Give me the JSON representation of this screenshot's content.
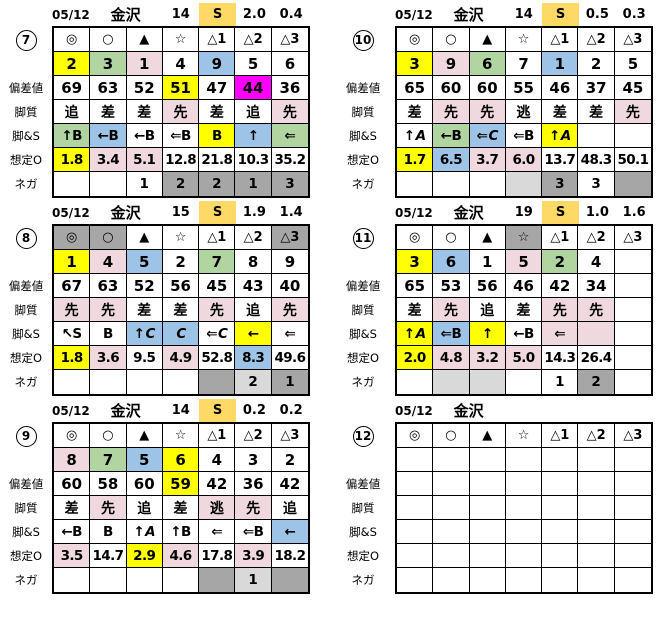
{
  "colors": {
    "yellow": "#FFFF00",
    "green": "#B1D5A0",
    "pink": "#EFD9DE",
    "blue": "#9DC3E6",
    "magenta": "#FF00FF",
    "orange": "#FFD966",
    "gray": "#A6A6A6",
    "lgray": "#D9D9D9"
  },
  "row_labels": [
    "偏差値",
    "脚質",
    "脚&S",
    "想定O",
    "ネガ"
  ],
  "tables": [
    {
      "circle": "7",
      "header": {
        "date": "05/12",
        "track": "金沢",
        "race": "14",
        "flag": "S",
        "v1": "2.0",
        "v2": "0.4"
      },
      "symbols": [
        [
          "◎",
          ""
        ],
        [
          "○",
          ""
        ],
        [
          "▲",
          ""
        ],
        [
          "☆",
          ""
        ],
        [
          "△1",
          ""
        ],
        [
          "△2",
          ""
        ],
        [
          "△3",
          ""
        ]
      ],
      "pick": [
        [
          "2",
          "yellow"
        ],
        [
          "3",
          "green"
        ],
        [
          "1",
          "pink"
        ],
        [
          "4",
          ""
        ],
        [
          "9",
          "blue"
        ],
        [
          "5",
          ""
        ],
        [
          "6",
          ""
        ]
      ],
      "dev": [
        [
          "69",
          ""
        ],
        [
          "63",
          ""
        ],
        [
          "52",
          ""
        ],
        [
          "51",
          "yellow"
        ],
        [
          "47",
          ""
        ],
        [
          "44",
          "magenta"
        ],
        [
          "36",
          ""
        ]
      ],
      "kyaku": [
        [
          "追",
          ""
        ],
        [
          "差",
          ""
        ],
        [
          "差",
          ""
        ],
        [
          "先",
          "pink"
        ],
        [
          "差",
          ""
        ],
        [
          "追",
          ""
        ],
        [
          "先",
          "pink"
        ]
      ],
      "kyaku_s": [
        [
          "↑B",
          "green"
        ],
        [
          "←B",
          "blue"
        ],
        [
          "←B",
          ""
        ],
        [
          "⇐B",
          ""
        ],
        [
          "B",
          "yellow"
        ],
        [
          "↑",
          "blue"
        ],
        [
          "⇐",
          "green"
        ]
      ],
      "odds": [
        [
          "1.8",
          "yellow"
        ],
        [
          "3.4",
          "pink"
        ],
        [
          "5.1",
          "pink"
        ],
        [
          "12.8",
          ""
        ],
        [
          "21.8",
          ""
        ],
        [
          "10.3",
          ""
        ],
        [
          "35.2",
          ""
        ]
      ],
      "nega": [
        [
          "",
          ""
        ],
        [
          "",
          ""
        ],
        [
          "1",
          ""
        ],
        [
          "2",
          "gray"
        ],
        [
          "2",
          "gray"
        ],
        [
          "1",
          "gray"
        ],
        [
          "3",
          "gray"
        ]
      ]
    },
    {
      "circle": "10",
      "header": {
        "date": "05/12",
        "track": "金沢",
        "race": "14",
        "flag": "S",
        "v1": "0.5",
        "v2": "0.3"
      },
      "symbols": [
        [
          "◎",
          ""
        ],
        [
          "○",
          ""
        ],
        [
          "▲",
          ""
        ],
        [
          "☆",
          ""
        ],
        [
          "△1",
          ""
        ],
        [
          "△2",
          ""
        ],
        [
          "△3",
          ""
        ]
      ],
      "pick": [
        [
          "3",
          "yellow"
        ],
        [
          "9",
          "pink"
        ],
        [
          "6",
          "green"
        ],
        [
          "7",
          ""
        ],
        [
          "1",
          "blue"
        ],
        [
          "2",
          ""
        ],
        [
          "5",
          ""
        ]
      ],
      "dev": [
        [
          "65",
          ""
        ],
        [
          "60",
          ""
        ],
        [
          "60",
          ""
        ],
        [
          "55",
          ""
        ],
        [
          "46",
          ""
        ],
        [
          "37",
          ""
        ],
        [
          "45",
          ""
        ]
      ],
      "kyaku": [
        [
          "差",
          ""
        ],
        [
          "先",
          "pink"
        ],
        [
          "先",
          "pink"
        ],
        [
          "逃",
          ""
        ],
        [
          "差",
          ""
        ],
        [
          "差",
          ""
        ],
        [
          "先",
          "pink"
        ]
      ],
      "kyaku_s": [
        [
          "↑A",
          ""
        ],
        [
          "←B",
          "green"
        ],
        [
          "⇐C",
          "blue"
        ],
        [
          "⇐B",
          ""
        ],
        [
          "↑A",
          "yellow"
        ],
        [
          "",
          ""
        ],
        [
          "",
          ""
        ]
      ],
      "odds": [
        [
          "1.7",
          "yellow"
        ],
        [
          "6.5",
          "blue"
        ],
        [
          "3.7",
          "pink"
        ],
        [
          "6.0",
          "pink"
        ],
        [
          "13.7",
          ""
        ],
        [
          "48.3",
          ""
        ],
        [
          "50.1",
          ""
        ]
      ],
      "nega": [
        [
          "",
          ""
        ],
        [
          "",
          ""
        ],
        [
          "",
          ""
        ],
        [
          "",
          "lgray"
        ],
        [
          "3",
          "gray"
        ],
        [
          "3",
          ""
        ],
        [
          "",
          "gray"
        ]
      ]
    },
    {
      "circle": "8",
      "header": {
        "date": "05/12",
        "track": "金沢",
        "race": "15",
        "flag": "S",
        "v1": "1.9",
        "v2": "1.4"
      },
      "symbols": [
        [
          "◎",
          "gray"
        ],
        [
          "○",
          "gray"
        ],
        [
          "▲",
          ""
        ],
        [
          "☆",
          ""
        ],
        [
          "△1",
          ""
        ],
        [
          "△2",
          ""
        ],
        [
          "△3",
          "gray"
        ]
      ],
      "pick": [
        [
          "1",
          "yellow"
        ],
        [
          "4",
          "pink"
        ],
        [
          "5",
          "blue"
        ],
        [
          "2",
          ""
        ],
        [
          "7",
          "green"
        ],
        [
          "8",
          ""
        ],
        [
          "9",
          ""
        ]
      ],
      "dev": [
        [
          "67",
          ""
        ],
        [
          "63",
          ""
        ],
        [
          "52",
          ""
        ],
        [
          "56",
          ""
        ],
        [
          "45",
          ""
        ],
        [
          "43",
          ""
        ],
        [
          "40",
          ""
        ]
      ],
      "kyaku": [
        [
          "先",
          "pink"
        ],
        [
          "先",
          "pink"
        ],
        [
          "差",
          ""
        ],
        [
          "差",
          ""
        ],
        [
          "先",
          "pink"
        ],
        [
          "追",
          ""
        ],
        [
          "先",
          "pink"
        ]
      ],
      "kyaku_s": [
        [
          "↖S",
          ""
        ],
        [
          "B",
          ""
        ],
        [
          "↑C",
          "blue"
        ],
        [
          "C",
          "blue"
        ],
        [
          "⇐C",
          ""
        ],
        [
          "←",
          "yellow"
        ],
        [
          "⇐",
          ""
        ]
      ],
      "odds": [
        [
          "1.8",
          "yellow"
        ],
        [
          "3.6",
          "pink"
        ],
        [
          "9.5",
          ""
        ],
        [
          "4.9",
          "pink"
        ],
        [
          "52.8",
          ""
        ],
        [
          "8.3",
          "blue"
        ],
        [
          "49.6",
          ""
        ]
      ],
      "nega": [
        [
          "",
          ""
        ],
        [
          "",
          ""
        ],
        [
          "",
          ""
        ],
        [
          "",
          ""
        ],
        [
          "",
          "gray"
        ],
        [
          "2",
          "lgray"
        ],
        [
          "1",
          "gray"
        ]
      ]
    },
    {
      "circle": "11",
      "header": {
        "date": "05/12",
        "track": "金沢",
        "race": "19",
        "flag": "S",
        "v1": "1.0",
        "v2": "1.6"
      },
      "symbols": [
        [
          "◎",
          ""
        ],
        [
          "○",
          ""
        ],
        [
          "▲",
          ""
        ],
        [
          "☆",
          "gray"
        ],
        [
          "△1",
          ""
        ],
        [
          "△2",
          ""
        ],
        [
          "△3",
          ""
        ]
      ],
      "pick": [
        [
          "3",
          "yellow"
        ],
        [
          "6",
          "blue"
        ],
        [
          "1",
          ""
        ],
        [
          "5",
          "pink"
        ],
        [
          "2",
          "green"
        ],
        [
          "4",
          ""
        ],
        [
          "",
          ""
        ]
      ],
      "dev": [
        [
          "65",
          ""
        ],
        [
          "53",
          ""
        ],
        [
          "56",
          ""
        ],
        [
          "46",
          ""
        ],
        [
          "42",
          ""
        ],
        [
          "34",
          ""
        ],
        [
          "",
          ""
        ]
      ],
      "kyaku": [
        [
          "差",
          ""
        ],
        [
          "先",
          "pink"
        ],
        [
          "追",
          ""
        ],
        [
          "差",
          ""
        ],
        [
          "先",
          "pink"
        ],
        [
          "先",
          "pink"
        ],
        [
          "",
          ""
        ]
      ],
      "kyaku_s": [
        [
          "↑A",
          "yellow"
        ],
        [
          "⇐B",
          "blue"
        ],
        [
          "↑",
          "yellow"
        ],
        [
          "←B",
          ""
        ],
        [
          "⇐",
          "pink"
        ],
        [
          "",
          "pink"
        ],
        [
          "",
          ""
        ]
      ],
      "odds": [
        [
          "2.0",
          "yellow"
        ],
        [
          "4.8",
          "pink"
        ],
        [
          "3.2",
          "pink"
        ],
        [
          "5.0",
          "pink"
        ],
        [
          "14.3",
          ""
        ],
        [
          "26.4",
          ""
        ],
        [
          "",
          ""
        ]
      ],
      "nega": [
        [
          "",
          ""
        ],
        [
          "",
          "lgray"
        ],
        [
          "",
          "lgray"
        ],
        [
          "",
          ""
        ],
        [
          "1",
          ""
        ],
        [
          "2",
          "gray"
        ],
        [
          "",
          ""
        ]
      ]
    },
    {
      "circle": "9",
      "header": {
        "date": "05/12",
        "track": "金沢",
        "race": "14",
        "flag": "S",
        "v1": "0.2",
        "v2": "0.2"
      },
      "symbols": [
        [
          "◎",
          ""
        ],
        [
          "○",
          ""
        ],
        [
          "▲",
          ""
        ],
        [
          "☆",
          ""
        ],
        [
          "△1",
          ""
        ],
        [
          "△2",
          ""
        ],
        [
          "△3",
          ""
        ]
      ],
      "pick": [
        [
          "8",
          "pink"
        ],
        [
          "7",
          "green"
        ],
        [
          "5",
          "blue"
        ],
        [
          "6",
          "yellow"
        ],
        [
          "4",
          ""
        ],
        [
          "3",
          ""
        ],
        [
          "2",
          ""
        ]
      ],
      "dev": [
        [
          "60",
          ""
        ],
        [
          "58",
          ""
        ],
        [
          "60",
          ""
        ],
        [
          "59",
          "yellow"
        ],
        [
          "42",
          ""
        ],
        [
          "36",
          ""
        ],
        [
          "42",
          ""
        ]
      ],
      "kyaku": [
        [
          "差",
          ""
        ],
        [
          "先",
          "pink"
        ],
        [
          "追",
          ""
        ],
        [
          "差",
          ""
        ],
        [
          "逃",
          "pink"
        ],
        [
          "先",
          "pink"
        ],
        [
          "追",
          ""
        ]
      ],
      "kyaku_s": [
        [
          "←B",
          ""
        ],
        [
          "B",
          ""
        ],
        [
          "↑A",
          ""
        ],
        [
          "↑B",
          ""
        ],
        [
          "⇐",
          ""
        ],
        [
          "⇐B",
          ""
        ],
        [
          "←",
          "blue"
        ]
      ],
      "odds": [
        [
          "3.5",
          "pink"
        ],
        [
          "14.7",
          ""
        ],
        [
          "2.9",
          "yellow"
        ],
        [
          "4.6",
          "pink"
        ],
        [
          "17.8",
          ""
        ],
        [
          "3.9",
          "pink"
        ],
        [
          "18.2",
          ""
        ]
      ],
      "nega": [
        [
          "",
          ""
        ],
        [
          "",
          ""
        ],
        [
          "",
          ""
        ],
        [
          "",
          ""
        ],
        [
          "",
          "gray"
        ],
        [
          "1",
          "lgray"
        ],
        [
          "",
          "gray"
        ]
      ]
    },
    {
      "circle": "12",
      "header": {
        "date": "05/12",
        "track": "金沢",
        "race": "",
        "flag": "",
        "v1": "",
        "v2": ""
      },
      "symbols": [
        [
          "◎",
          ""
        ],
        [
          "○",
          ""
        ],
        [
          "▲",
          ""
        ],
        [
          "☆",
          ""
        ],
        [
          "△1",
          ""
        ],
        [
          "△2",
          ""
        ],
        [
          "△3",
          ""
        ]
      ],
      "pick": [
        [
          "",
          ""
        ],
        [
          "",
          ""
        ],
        [
          "",
          ""
        ],
        [
          "",
          ""
        ],
        [
          "",
          ""
        ],
        [
          "",
          ""
        ],
        [
          "",
          ""
        ]
      ],
      "dev": [
        [
          "",
          ""
        ],
        [
          "",
          ""
        ],
        [
          "",
          ""
        ],
        [
          "",
          ""
        ],
        [
          "",
          ""
        ],
        [
          "",
          ""
        ],
        [
          "",
          ""
        ]
      ],
      "kyaku": [
        [
          "",
          ""
        ],
        [
          "",
          ""
        ],
        [
          "",
          ""
        ],
        [
          "",
          ""
        ],
        [
          "",
          ""
        ],
        [
          "",
          ""
        ],
        [
          "",
          ""
        ]
      ],
      "kyaku_s": [
        [
          "",
          ""
        ],
        [
          "",
          ""
        ],
        [
          "",
          ""
        ],
        [
          "",
          ""
        ],
        [
          "",
          ""
        ],
        [
          "",
          ""
        ],
        [
          "",
          ""
        ]
      ],
      "odds": [
        [
          "",
          ""
        ],
        [
          "",
          ""
        ],
        [
          "",
          ""
        ],
        [
          "",
          ""
        ],
        [
          "",
          ""
        ],
        [
          "",
          ""
        ],
        [
          "",
          ""
        ]
      ],
      "nega": [
        [
          "",
          ""
        ],
        [
          "",
          ""
        ],
        [
          "",
          ""
        ],
        [
          "",
          ""
        ],
        [
          "",
          ""
        ],
        [
          "",
          ""
        ],
        [
          "",
          ""
        ]
      ]
    }
  ]
}
